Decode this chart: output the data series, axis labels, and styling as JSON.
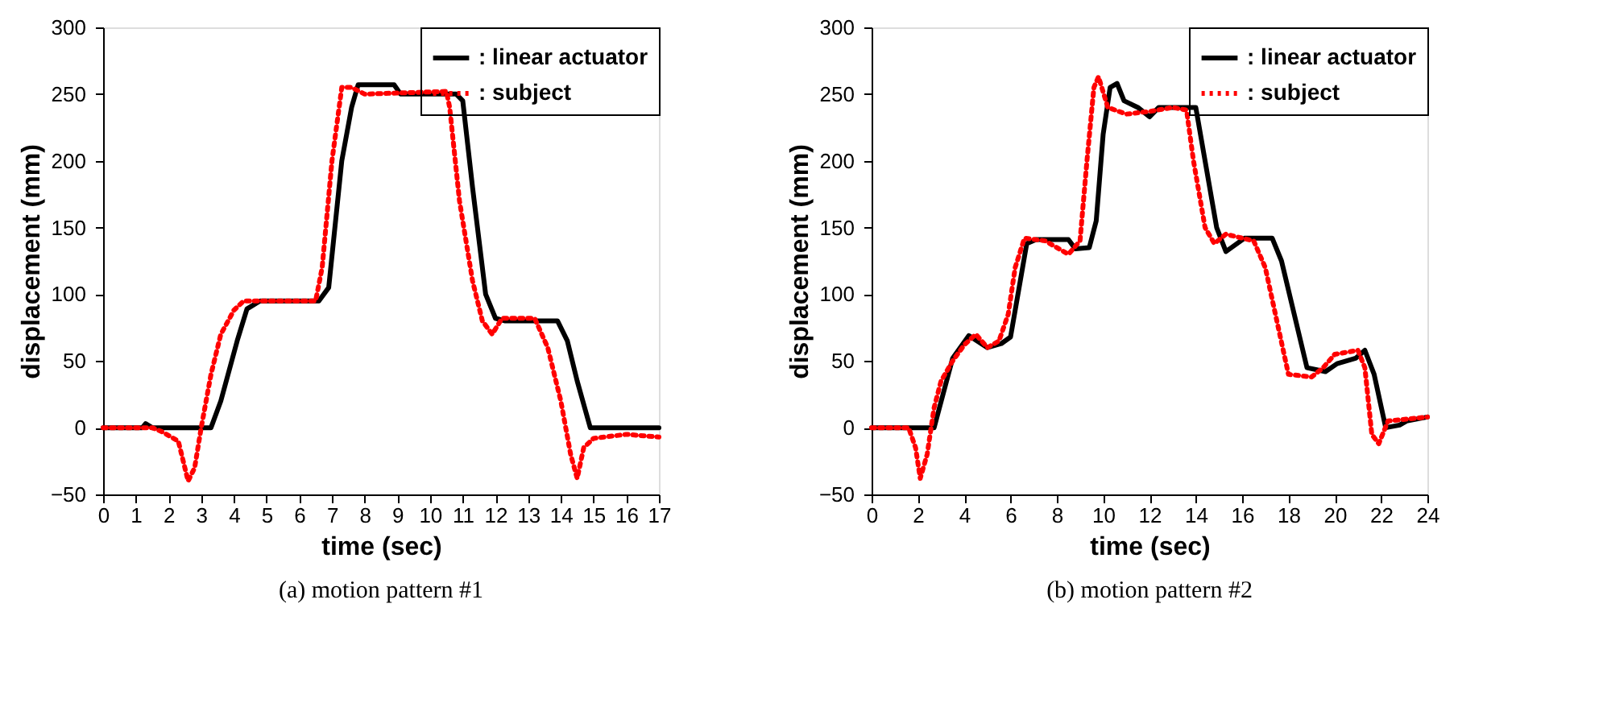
{
  "chart_data": [
    {
      "type": "line",
      "xlabel": "time (sec)",
      "ylabel": "displacement (mm)",
      "annotations": [
        "(a) motion pattern #1"
      ],
      "legend": "top right",
      "grid": false,
      "marker": "none",
      "xlim": [
        0,
        17
      ],
      "xticks": [
        0,
        1,
        2,
        3,
        4,
        5,
        6,
        7,
        8,
        9,
        10,
        11,
        12,
        13,
        14,
        15,
        16,
        17
      ],
      "ylim": [
        -50,
        300
      ],
      "yticks": [
        -50,
        0,
        50,
        100,
        150,
        200,
        250,
        300
      ],
      "series": [
        {
          "name": ": linear actuator",
          "color": "#000000",
          "line_style": "solid",
          "x": [
            0,
            1.2,
            1.3,
            1.5,
            3.3,
            3.6,
            4.1,
            4.4,
            4.8,
            6.6,
            6.9,
            7.3,
            7.6,
            7.8,
            8.9,
            9.1,
            10.8,
            11.0,
            11.3,
            11.7,
            12.0,
            12.3,
            13.9,
            14.2,
            14.5,
            14.9,
            17
          ],
          "values": [
            0,
            0,
            3,
            0,
            0,
            20,
            65,
            89,
            95,
            95,
            105,
            200,
            240,
            257,
            257,
            250,
            250,
            245,
            180,
            100,
            82,
            80,
            80,
            65,
            35,
            0,
            0
          ]
        },
        {
          "name": ": subject",
          "color": "#ff0000",
          "line_style": "dotted",
          "x": [
            0,
            1.5,
            1.8,
            2.3,
            2.6,
            2.8,
            3.0,
            3.3,
            3.6,
            4.0,
            4.3,
            6.5,
            6.7,
            7.0,
            7.3,
            7.6,
            8.0,
            10.5,
            10.6,
            10.9,
            11.3,
            11.6,
            11.9,
            12.2,
            13.2,
            13.6,
            14.0,
            14.3,
            14.5,
            14.7,
            15.0,
            16.0,
            17
          ],
          "values": [
            0,
            0,
            -3,
            -10,
            -40,
            -30,
            0,
            40,
            70,
            88,
            95,
            95,
            120,
            200,
            255,
            255,
            250,
            252,
            240,
            170,
            110,
            80,
            70,
            82,
            82,
            60,
            20,
            -20,
            -38,
            -15,
            -8,
            -5,
            -7
          ]
        }
      ]
    },
    {
      "type": "line",
      "xlabel": "time (sec)",
      "ylabel": "displacement (mm)",
      "annotations": [
        "(b) motion pattern #2"
      ],
      "legend": "top right",
      "grid": false,
      "marker": "none",
      "xlim": [
        0,
        24
      ],
      "xticks": [
        0,
        2,
        4,
        6,
        8,
        10,
        12,
        14,
        16,
        18,
        20,
        22,
        24
      ],
      "ylim": [
        -50,
        300
      ],
      "yticks": [
        -50,
        0,
        50,
        100,
        150,
        200,
        250,
        300
      ],
      "series": [
        {
          "name": ": linear actuator",
          "color": "#000000",
          "line_style": "solid",
          "x": [
            0,
            2.7,
            3.5,
            4.2,
            5.0,
            5.6,
            6.0,
            6.7,
            7.1,
            8.5,
            8.8,
            9.4,
            9.7,
            10.0,
            10.3,
            10.6,
            10.9,
            11.5,
            12.0,
            12.4,
            14.0,
            14.9,
            15.3,
            16.1,
            17.3,
            17.7,
            18.8,
            19.6,
            20.1,
            20.9,
            21.3,
            21.7,
            22.2,
            22.8,
            23.1,
            24
          ],
          "values": [
            0,
            0,
            52,
            69,
            60,
            63,
            68,
            138,
            141,
            141,
            134,
            135,
            155,
            220,
            255,
            258,
            245,
            240,
            233,
            240,
            240,
            150,
            132,
            142,
            142,
            125,
            45,
            42,
            48,
            52,
            58,
            40,
            0,
            2,
            5,
            8
          ]
        },
        {
          "name": ": subject",
          "color": "#ff0000",
          "line_style": "dotted",
          "x": [
            0,
            1.6,
            1.9,
            2.1,
            2.4,
            2.7,
            3.0,
            3.5,
            4.0,
            4.5,
            5.0,
            5.5,
            5.9,
            6.2,
            6.6,
            7.5,
            8.5,
            9.0,
            9.3,
            9.6,
            9.8,
            10.2,
            11.0,
            12.0,
            13.0,
            13.6,
            13.9,
            14.4,
            14.8,
            15.3,
            16.5,
            17.0,
            17.5,
            18.0,
            19.0,
            19.5,
            20.0,
            21.0,
            21.3,
            21.6,
            21.9,
            22.3,
            24
          ],
          "values": [
            0,
            0,
            -15,
            -38,
            -20,
            15,
            35,
            50,
            62,
            70,
            60,
            65,
            85,
            120,
            142,
            140,
            130,
            140,
            200,
            255,
            263,
            240,
            235,
            237,
            240,
            238,
            200,
            150,
            138,
            145,
            140,
            120,
            80,
            40,
            38,
            45,
            55,
            58,
            45,
            -5,
            -12,
            5,
            8
          ]
        }
      ]
    }
  ]
}
